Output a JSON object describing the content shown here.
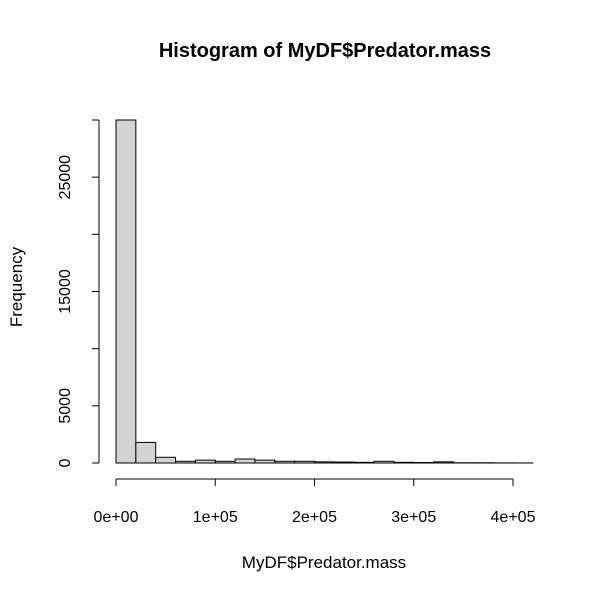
{
  "chart_data": {
    "type": "bar",
    "title": "Histogram of MyDF$Predator.mass",
    "xlabel": "MyDF$Predator.mass",
    "ylabel": "Frequency",
    "bin_width": 20000,
    "bin_starts": [
      0,
      20000,
      40000,
      60000,
      80000,
      100000,
      120000,
      140000,
      160000,
      180000,
      200000,
      220000,
      240000,
      260000,
      280000,
      300000,
      320000,
      340000,
      360000,
      380000,
      400000
    ],
    "values": [
      30000,
      1800,
      500,
      150,
      250,
      150,
      350,
      250,
      150,
      150,
      100,
      80,
      60,
      150,
      60,
      40,
      100,
      20,
      20,
      10,
      5
    ],
    "xlim": [
      0,
      420000
    ],
    "ylim": [
      0,
      30000
    ],
    "x_ticks": [
      0,
      100000,
      200000,
      300000,
      400000
    ],
    "x_tick_labels": [
      "0e+00",
      "1e+05",
      "2e+05",
      "3e+05",
      "4e+05"
    ],
    "y_ticks": [
      0,
      5000,
      15000,
      25000
    ],
    "y_tick_labels": [
      "0",
      "5000",
      "15000",
      "25000"
    ],
    "y_minor_ticks": [
      10000,
      20000,
      30000
    ],
    "grid": false,
    "bar_color": "#d3d3d3"
  }
}
